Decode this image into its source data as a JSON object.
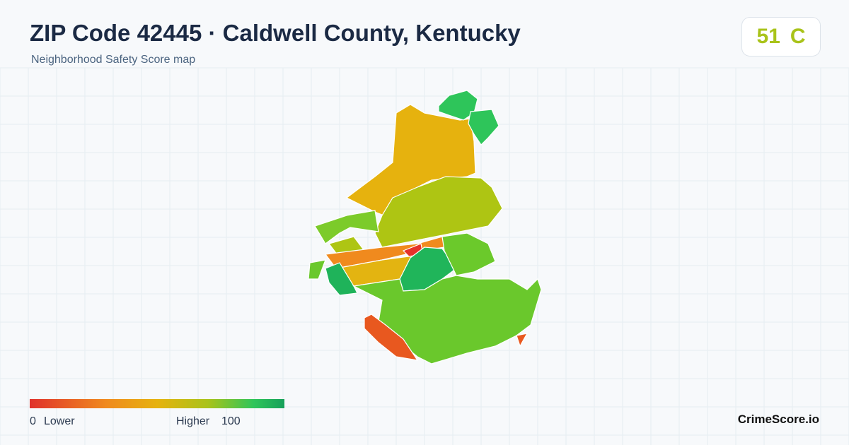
{
  "header": {
    "title": "ZIP Code 42445 · Caldwell County, Kentucky",
    "subtitle": "Neighborhood Safety Score map"
  },
  "score": {
    "value": "51",
    "grade": "C"
  },
  "legend": {
    "min": "0",
    "min_label": "Lower",
    "max_label": "Higher",
    "max": "100"
  },
  "brand": "CrimeScore.io"
}
